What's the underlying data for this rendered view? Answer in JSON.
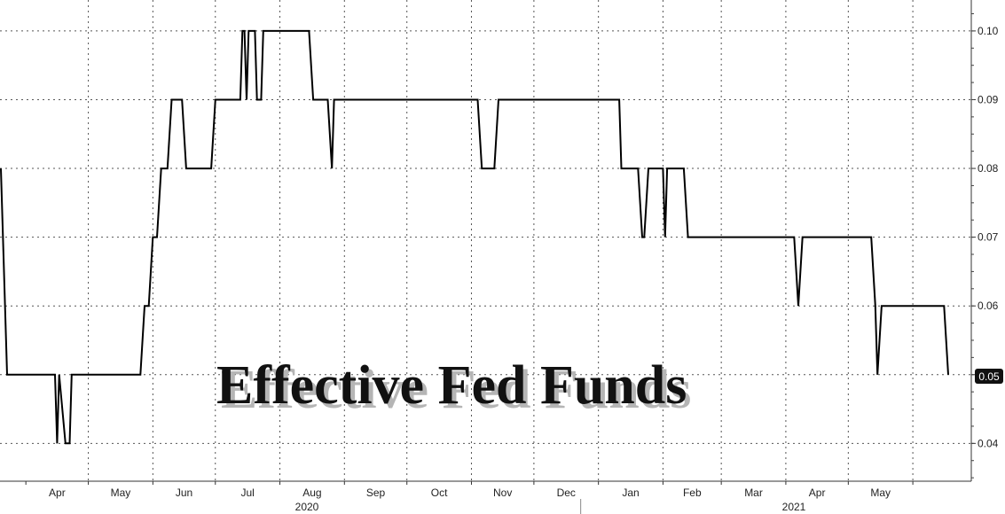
{
  "chart_data": {
    "type": "line",
    "title": "Effective Fed Funds",
    "xlabel": "",
    "ylabel": "",
    "ylim": [
      0.0345,
      0.1045
    ],
    "y_ticks": [
      0.04,
      0.05,
      0.06,
      0.07,
      0.08,
      0.09,
      0.1
    ],
    "y_tick_labels": [
      "0.04",
      "0.05",
      "0.06",
      "0.07",
      "0.08",
      "0.09",
      "0.10"
    ],
    "axis_position": "right",
    "grid": true,
    "months": [
      "Apr",
      "May",
      "Jun",
      "Jul",
      "Aug",
      "Sep",
      "Oct",
      "Nov",
      "Dec",
      "Jan",
      "Feb",
      "Mar",
      "Apr",
      "May"
    ],
    "years": [
      "2020",
      "2021"
    ],
    "last_value_label": "0.05",
    "series": [
      {
        "name": "",
        "color": "#000000",
        "points": [
          [
            "2020-03-20",
            0.08
          ],
          [
            "2020-03-23",
            0.05
          ],
          [
            "2020-04-15",
            0.05
          ],
          [
            "2020-04-16",
            0.04
          ],
          [
            "2020-04-17",
            0.05
          ],
          [
            "2020-04-20",
            0.04
          ],
          [
            "2020-04-22",
            0.04
          ],
          [
            "2020-04-23",
            0.05
          ],
          [
            "2020-05-26",
            0.05
          ],
          [
            "2020-05-28",
            0.06
          ],
          [
            "2020-05-30",
            0.06
          ],
          [
            "2020-06-01",
            0.07
          ],
          [
            "2020-06-03",
            0.07
          ],
          [
            "2020-06-05",
            0.08
          ],
          [
            "2020-06-08",
            0.08
          ],
          [
            "2020-06-10",
            0.09
          ],
          [
            "2020-06-15",
            0.09
          ],
          [
            "2020-06-17",
            0.08
          ],
          [
            "2020-06-29",
            0.08
          ],
          [
            "2020-07-01",
            0.09
          ],
          [
            "2020-07-13",
            0.09
          ],
          [
            "2020-07-14",
            0.1
          ],
          [
            "2020-07-15",
            0.1
          ],
          [
            "2020-07-16",
            0.09
          ],
          [
            "2020-07-17",
            0.1
          ],
          [
            "2020-07-20",
            0.1
          ],
          [
            "2020-07-21",
            0.09
          ],
          [
            "2020-07-23",
            0.09
          ],
          [
            "2020-07-24",
            0.1
          ],
          [
            "2020-08-15",
            0.1
          ],
          [
            "2020-08-17",
            0.09
          ],
          [
            "2020-08-24",
            0.09
          ],
          [
            "2020-08-26",
            0.08
          ],
          [
            "2020-08-27",
            0.09
          ],
          [
            "2020-11-04",
            0.09
          ],
          [
            "2020-11-06",
            0.08
          ],
          [
            "2020-11-12",
            0.08
          ],
          [
            "2020-11-14",
            0.09
          ],
          [
            "2021-01-11",
            0.09
          ],
          [
            "2021-01-12",
            0.08
          ],
          [
            "2021-01-20",
            0.08
          ],
          [
            "2021-01-22",
            0.07
          ],
          [
            "2021-01-23",
            0.07
          ],
          [
            "2021-01-25",
            0.08
          ],
          [
            "2021-02-01",
            0.08
          ],
          [
            "2021-02-02",
            0.07
          ],
          [
            "2021-02-03",
            0.08
          ],
          [
            "2021-02-11",
            0.08
          ],
          [
            "2021-02-13",
            0.07
          ],
          [
            "2021-04-05",
            0.07
          ],
          [
            "2021-04-07",
            0.06
          ],
          [
            "2021-04-09",
            0.07
          ],
          [
            "2021-05-12",
            0.07
          ],
          [
            "2021-05-14",
            0.06
          ],
          [
            "2021-05-15",
            0.05
          ],
          [
            "2021-05-17",
            0.06
          ],
          [
            "2021-06-16",
            0.06
          ],
          [
            "2021-06-18",
            0.05
          ]
        ]
      }
    ]
  }
}
